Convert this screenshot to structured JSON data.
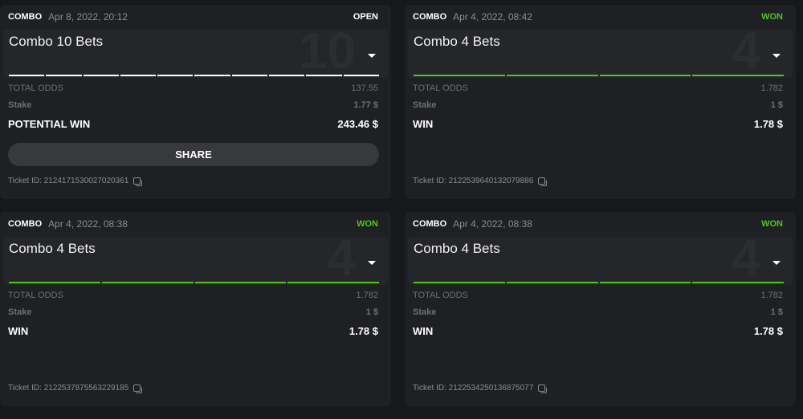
{
  "colors": {
    "won": "#52c41a",
    "open": "#ffffff",
    "leg_open": "#ffffff",
    "leg_won": "#52c41a"
  },
  "labels": {
    "total_odds": "TOTAL ODDS",
    "stake": "Stake",
    "share": "SHARE",
    "ticket_prefix": "Ticket ID: "
  },
  "cards": [
    {
      "type": "COMBO",
      "date": "Apr 8, 2022, 20:12",
      "status": "OPEN",
      "title": "Combo 10 Bets",
      "count": "10",
      "legs": 10,
      "legs_state": "open",
      "total_odds": "137.55",
      "stake": "1.77 $",
      "win_label": "POTENTIAL WIN",
      "win": "243.46 $",
      "show_share": true,
      "ticket_id": "2124171530027020361"
    },
    {
      "type": "COMBO",
      "date": "Apr 4, 2022, 08:42",
      "status": "WON",
      "title": "Combo 4 Bets",
      "count": "4",
      "legs": 4,
      "legs_state": "won",
      "total_odds": "1.782",
      "stake": "1 $",
      "win_label": "WIN",
      "win": "1.78 $",
      "show_share": false,
      "ticket_id": "2122539640132079886"
    },
    {
      "type": "COMBO",
      "date": "Apr 4, 2022, 08:38",
      "status": "WON",
      "title": "Combo 4 Bets",
      "count": "4",
      "legs": 4,
      "legs_state": "won",
      "total_odds": "1.782",
      "stake": "1 $",
      "win_label": "WIN",
      "win": "1.78 $",
      "show_share": false,
      "ticket_id": "2122537875563229185"
    },
    {
      "type": "COMBO",
      "date": "Apr 4, 2022, 08:38",
      "status": "WON",
      "title": "Combo 4 Bets",
      "count": "4",
      "legs": 4,
      "legs_state": "won",
      "total_odds": "1.782",
      "stake": "1 $",
      "win_label": "WIN",
      "win": "1.78 $",
      "show_share": false,
      "ticket_id": "2122534250136875077"
    }
  ]
}
